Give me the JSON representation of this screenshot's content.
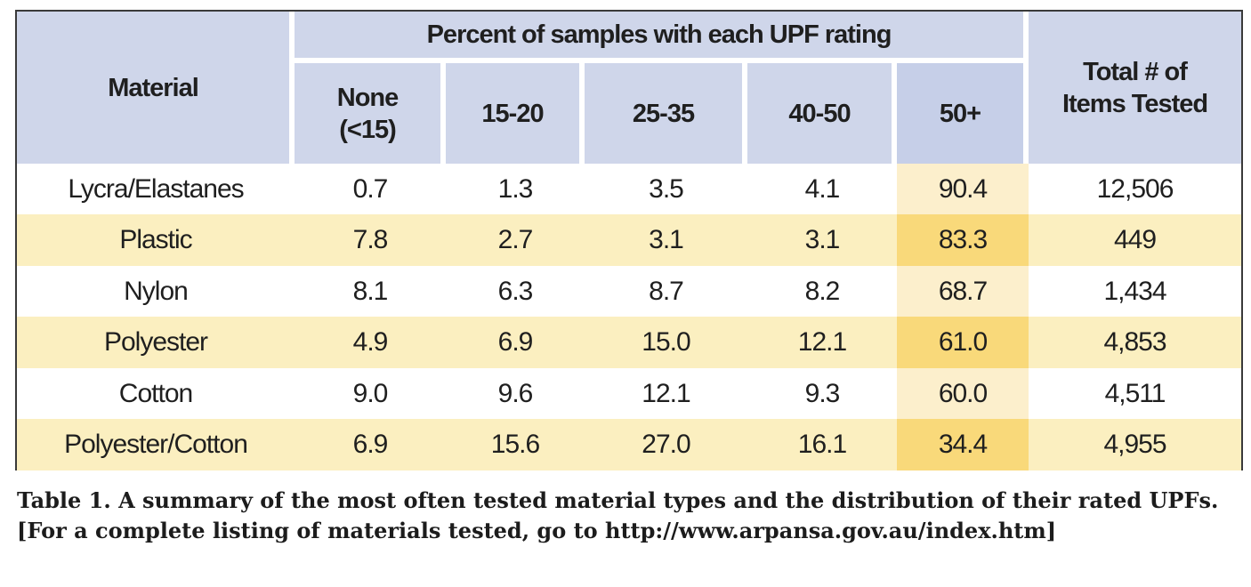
{
  "chart_data": {
    "type": "table",
    "header": {
      "material": "Material",
      "group": "Percent of samples with each UPF rating",
      "total": "Total # of Items Tested",
      "columns": [
        "None (<15)",
        "15-20",
        "25-35",
        "40-50",
        "50+"
      ]
    },
    "rows": [
      {
        "material": "Lycra/Elastanes",
        "values": [
          "0.7",
          "1.3",
          "3.5",
          "4.1",
          "90.4"
        ],
        "total": "12,506"
      },
      {
        "material": "Plastic",
        "values": [
          "7.8",
          "2.7",
          "3.1",
          "3.1",
          "83.3"
        ],
        "total": "449"
      },
      {
        "material": "Nylon",
        "values": [
          "8.1",
          "6.3",
          "8.7",
          "8.2",
          "68.7"
        ],
        "total": "1,434"
      },
      {
        "material": "Polyester",
        "values": [
          "4.9",
          "6.9",
          "15.0",
          "12.1",
          "61.0"
        ],
        "total": "4,853"
      },
      {
        "material": "Cotton",
        "values": [
          "9.0",
          "9.6",
          "12.1",
          "9.3",
          "60.0"
        ],
        "total": "4,511"
      },
      {
        "material": "Polyester/Cotton",
        "values": [
          "6.9",
          "15.6",
          "27.0",
          "16.1",
          "34.4"
        ],
        "total": "4,955"
      }
    ],
    "highlight_column": "50+",
    "colors": {
      "header": "#cfd6ea",
      "row_stripe": "#fbefc0",
      "highlight": "#f9d97a",
      "border": "#3a3a3a"
    }
  },
  "caption": {
    "label": "Table 1.",
    "text": "A summary of the most often tested material types and the distribution of their rated UPFs. [For a complete listing of materials tested, go to http://www.arpansa.gov.au/index.htm]"
  }
}
